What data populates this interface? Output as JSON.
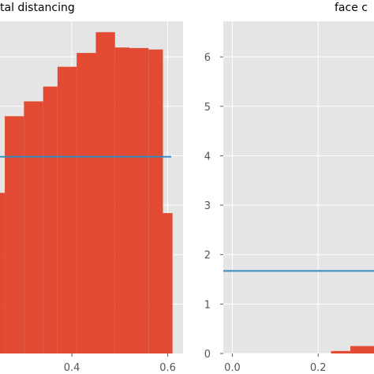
{
  "chart_data": [
    {
      "type": "bar",
      "title": "tal distancing",
      "xlabel": "",
      "ylabel": "",
      "xlim": [
        0.25,
        0.632
      ],
      "ylim": [
        0,
        6.72
      ],
      "x_ticks": [
        0.4,
        0.6
      ],
      "x_tick_labels": [
        "0.4",
        "0.6"
      ],
      "y_ticks": [
        1,
        2,
        3,
        4,
        5,
        6
      ],
      "grid": true,
      "bins": [
        {
          "x0": 0.25,
          "x1": 0.26,
          "value": 3.25
        },
        {
          "x0": 0.26,
          "x1": 0.3,
          "value": 4.8
        },
        {
          "x0": 0.3,
          "x1": 0.34,
          "value": 5.1
        },
        {
          "x0": 0.34,
          "x1": 0.37,
          "value": 5.4
        },
        {
          "x0": 0.37,
          "x1": 0.41,
          "value": 5.8
        },
        {
          "x0": 0.41,
          "x1": 0.45,
          "value": 6.08
        },
        {
          "x0": 0.45,
          "x1": 0.49,
          "value": 6.5
        },
        {
          "x0": 0.49,
          "x1": 0.52,
          "value": 6.19
        },
        {
          "x0": 0.52,
          "x1": 0.56,
          "value": 6.18
        },
        {
          "x0": 0.56,
          "x1": 0.59,
          "value": 6.15
        },
        {
          "x0": 0.59,
          "x1": 0.61,
          "value": 2.84
        }
      ],
      "hline": 3.98
    },
    {
      "type": "bar",
      "title": "face c",
      "xlabel": "",
      "ylabel": "",
      "xlim": [
        -0.021,
        0.33
      ],
      "ylim": [
        0,
        6.72
      ],
      "x_ticks": [
        0.0,
        0.2
      ],
      "x_tick_labels": [
        "0.0",
        "0.2"
      ],
      "y_ticks": [
        0,
        1,
        2,
        3,
        4,
        5,
        6
      ],
      "y_tick_labels": [
        "0",
        "1",
        "2",
        "3",
        "4",
        "5",
        "6"
      ],
      "grid": true,
      "bins": [
        {
          "x0": 0.23,
          "x1": 0.275,
          "value": 0.05
        },
        {
          "x0": 0.275,
          "x1": 0.33,
          "value": 0.15
        }
      ],
      "hline": 1.67
    }
  ],
  "colors": {
    "bar": "#e24a33",
    "hline": "#348abd",
    "panel_bg": "#e5e5e5",
    "grid": "#ffffff"
  }
}
